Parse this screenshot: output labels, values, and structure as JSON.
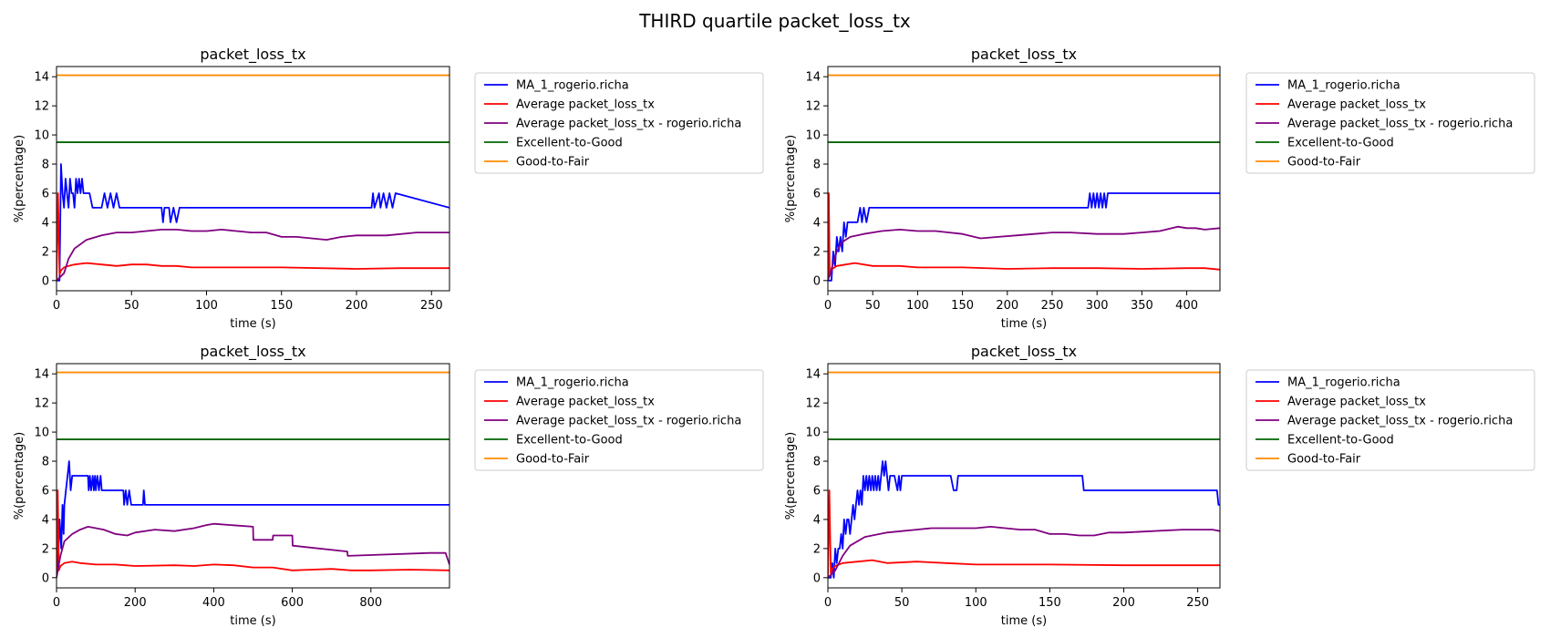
{
  "figure": {
    "title": "THIRD quartile packet_loss_tx"
  },
  "colors": {
    "ma": "#0000ff",
    "avg": "#ff0000",
    "avg_user": "#800080",
    "excellent_good": "#006400",
    "good_fair": "#ff8c00"
  },
  "legend_items": [
    "MA_1_rogerio.richa",
    "Average packet_loss_tx",
    "Average packet_loss_tx - rogerio.richa",
    "Excellent-to-Good",
    "Good-to-Fair"
  ],
  "chart_data": [
    {
      "type": "line",
      "title": "packet_loss_tx",
      "xlabel": "time (s)",
      "ylabel": "%(percentage)",
      "xlim": [
        0,
        262
      ],
      "ylim": [
        -0.7,
        14.7
      ],
      "xticks": [
        0,
        50,
        100,
        150,
        200,
        250
      ],
      "yticks": [
        0,
        2,
        4,
        6,
        8,
        10,
        12,
        14
      ],
      "grid": false,
      "legend": "outside-right",
      "thresholds": [
        {
          "name": "Excellent-to-Good",
          "value": 9.5,
          "color": "#006400"
        },
        {
          "name": "Good-to-Fair",
          "value": 14.1,
          "color": "#ff8c00"
        }
      ],
      "series": [
        {
          "name": "MA_1_rogerio.richa",
          "color": "#0000ff",
          "x": [
            0,
            2,
            3,
            4,
            5,
            6,
            7,
            8,
            9,
            10,
            11,
            12,
            13,
            14,
            15,
            16,
            17,
            18,
            20,
            22,
            24,
            30,
            32,
            34,
            36,
            38,
            40,
            42,
            60,
            70,
            71,
            72,
            75,
            76,
            78,
            80,
            82,
            210,
            211,
            212,
            215,
            216,
            218,
            220,
            222,
            224,
            226,
            262
          ],
          "y": [
            0,
            0,
            8,
            6,
            5,
            7,
            6,
            5,
            7,
            6,
            6,
            5,
            7,
            6,
            7,
            6,
            7,
            6,
            6,
            6,
            5,
            5,
            6,
            5,
            6,
            5,
            6,
            5,
            5,
            5,
            4,
            5,
            5,
            4,
            5,
            4,
            5,
            5,
            6,
            5,
            6,
            5,
            6,
            5,
            6,
            5,
            6,
            5
          ]
        },
        {
          "name": "Average packet_loss_tx",
          "color": "#ff0000",
          "x": [
            0,
            1,
            2,
            3,
            5,
            8,
            12,
            20,
            30,
            40,
            50,
            60,
            70,
            80,
            90,
            100,
            120,
            150,
            200,
            230,
            262
          ],
          "y": [
            0,
            6,
            0.4,
            0.7,
            0.9,
            1.0,
            1.1,
            1.2,
            1.1,
            1.0,
            1.1,
            1.1,
            1.0,
            1.0,
            0.9,
            0.9,
            0.9,
            0.9,
            0.8,
            0.85,
            0.85
          ]
        },
        {
          "name": "Average packet_loss_tx - rogerio.richa",
          "color": "#800080",
          "x": [
            0,
            5,
            8,
            12,
            20,
            30,
            40,
            50,
            60,
            70,
            80,
            90,
            100,
            110,
            120,
            130,
            140,
            150,
            160,
            170,
            180,
            190,
            200,
            220,
            240,
            262
          ],
          "y": [
            0,
            0.5,
            1.5,
            2.2,
            2.8,
            3.1,
            3.3,
            3.3,
            3.4,
            3.5,
            3.5,
            3.4,
            3.4,
            3.5,
            3.4,
            3.3,
            3.3,
            3.0,
            3.0,
            2.9,
            2.8,
            3.0,
            3.1,
            3.1,
            3.3,
            3.3
          ]
        }
      ]
    },
    {
      "type": "line",
      "title": "packet_loss_tx",
      "xlabel": "time (s)",
      "ylabel": "%(percentage)",
      "xlim": [
        0,
        437
      ],
      "ylim": [
        -0.7,
        14.7
      ],
      "xticks": [
        0,
        50,
        100,
        150,
        200,
        250,
        300,
        350,
        400
      ],
      "yticks": [
        0,
        2,
        4,
        6,
        8,
        10,
        12,
        14
      ],
      "grid": false,
      "legend": "outside-right",
      "thresholds": [
        {
          "name": "Excellent-to-Good",
          "value": 9.5,
          "color": "#006400"
        },
        {
          "name": "Good-to-Fair",
          "value": 14.1,
          "color": "#ff8c00"
        }
      ],
      "series": [
        {
          "name": "MA_1_rogerio.richa",
          "color": "#0000ff",
          "x": [
            0,
            4,
            6,
            8,
            10,
            12,
            14,
            16,
            18,
            20,
            22,
            25,
            28,
            30,
            33,
            36,
            38,
            40,
            43,
            46,
            50,
            290,
            292,
            294,
            296,
            298,
            300,
            302,
            304,
            306,
            308,
            310,
            312,
            437
          ],
          "y": [
            0,
            0,
            2,
            1,
            3,
            2,
            3,
            2,
            4,
            3,
            4,
            4,
            4,
            4,
            4,
            5,
            4,
            5,
            4,
            5,
            5,
            5,
            6,
            5,
            6,
            5,
            6,
            5,
            6,
            5,
            6,
            5,
            6,
            6
          ]
        },
        {
          "name": "Average packet_loss_tx",
          "color": "#ff0000",
          "x": [
            0,
            1,
            2,
            3,
            5,
            10,
            20,
            30,
            50,
            80,
            100,
            150,
            200,
            250,
            300,
            350,
            400,
            420,
            437
          ],
          "y": [
            0,
            6,
            0.3,
            0.6,
            0.8,
            1.0,
            1.1,
            1.2,
            1.0,
            1.0,
            0.9,
            0.9,
            0.8,
            0.85,
            0.85,
            0.8,
            0.85,
            0.85,
            0.75
          ]
        },
        {
          "name": "Average packet_loss_tx - rogerio.richa",
          "color": "#800080",
          "x": [
            0,
            5,
            10,
            15,
            25,
            40,
            60,
            80,
            100,
            120,
            150,
            170,
            190,
            210,
            230,
            250,
            270,
            300,
            330,
            350,
            370,
            390,
            400,
            410,
            420,
            437
          ],
          "y": [
            0,
            1.0,
            2.0,
            2.6,
            3.0,
            3.2,
            3.4,
            3.5,
            3.4,
            3.4,
            3.2,
            2.9,
            3.0,
            3.1,
            3.2,
            3.3,
            3.3,
            3.2,
            3.2,
            3.3,
            3.4,
            3.7,
            3.6,
            3.6,
            3.5,
            3.6
          ]
        }
      ]
    },
    {
      "type": "line",
      "title": "packet_loss_tx",
      "xlabel": "time (s)",
      "ylabel": "%(percentage)",
      "xlim": [
        0,
        1000
      ],
      "ylim": [
        -0.7,
        14.7
      ],
      "xticks": [
        0,
        200,
        400,
        600,
        800
      ],
      "yticks": [
        0,
        2,
        4,
        6,
        8,
        10,
        12,
        14
      ],
      "grid": false,
      "legend": "outside-right",
      "thresholds": [
        {
          "name": "Excellent-to-Good",
          "value": 9.5,
          "color": "#006400"
        },
        {
          "name": "Good-to-Fair",
          "value": 14.1,
          "color": "#ff8c00"
        }
      ],
      "series": [
        {
          "name": "MA_1_rogerio.richa",
          "color": "#0000ff",
          "x": [
            0,
            5,
            8,
            12,
            15,
            18,
            20,
            24,
            28,
            32,
            36,
            40,
            50,
            80,
            82,
            85,
            88,
            92,
            95,
            98,
            100,
            104,
            108,
            112,
            115,
            120,
            140,
            170,
            172,
            176,
            180,
            185,
            190,
            220,
            222,
            225,
            1000
          ],
          "y": [
            0,
            2,
            4,
            2,
            5,
            3,
            5,
            6,
            7,
            8,
            6,
            7,
            7,
            7,
            6,
            7,
            6,
            7,
            6,
            7,
            6,
            7,
            6,
            7,
            6,
            6,
            6,
            6,
            5,
            6,
            5,
            6,
            5,
            5,
            6,
            5,
            5
          ]
        },
        {
          "name": "Average packet_loss_tx",
          "color": "#ff0000",
          "x": [
            0,
            3,
            6,
            10,
            20,
            40,
            60,
            100,
            150,
            200,
            300,
            350,
            400,
            450,
            500,
            550,
            600,
            650,
            700,
            750,
            800,
            900,
            1000
          ],
          "y": [
            0,
            6,
            0.5,
            0.8,
            1.0,
            1.1,
            1.0,
            0.9,
            0.9,
            0.8,
            0.85,
            0.8,
            0.9,
            0.85,
            0.7,
            0.7,
            0.5,
            0.55,
            0.6,
            0.5,
            0.5,
            0.55,
            0.5
          ]
        },
        {
          "name": "Average packet_loss_tx - rogerio.richa",
          "color": "#800080",
          "x": [
            0,
            10,
            20,
            40,
            60,
            80,
            100,
            120,
            150,
            180,
            200,
            250,
            300,
            350,
            380,
            400,
            450,
            500,
            501,
            550,
            551,
            600,
            601,
            740,
            741,
            950,
            990,
            1000
          ],
          "y": [
            0,
            1.5,
            2.5,
            3.0,
            3.3,
            3.5,
            3.4,
            3.3,
            3.0,
            2.9,
            3.1,
            3.3,
            3.2,
            3.4,
            3.6,
            3.7,
            3.6,
            3.5,
            2.6,
            2.6,
            2.9,
            2.9,
            2.2,
            1.8,
            1.5,
            1.7,
            1.7,
            0.9
          ]
        }
      ]
    },
    {
      "type": "line",
      "title": "packet_loss_tx",
      "xlabel": "time (s)",
      "ylabel": "%(percentage)",
      "xlim": [
        0,
        265
      ],
      "ylim": [
        -0.7,
        14.7
      ],
      "xticks": [
        0,
        50,
        100,
        150,
        200,
        250
      ],
      "yticks": [
        0,
        2,
        4,
        6,
        8,
        10,
        12,
        14
      ],
      "grid": false,
      "legend": "outside-right",
      "thresholds": [
        {
          "name": "Excellent-to-Good",
          "value": 9.5,
          "color": "#006400"
        },
        {
          "name": "Good-to-Fair",
          "value": 14.1,
          "color": "#ff8c00"
        }
      ],
      "series": [
        {
          "name": "MA_1_rogerio.richa",
          "color": "#0000ff",
          "x": [
            0,
            2,
            3,
            4,
            5,
            6,
            7,
            8,
            9,
            10,
            11,
            12,
            13,
            14,
            15,
            16,
            17,
            18,
            19,
            20,
            21,
            22,
            23,
            24,
            25,
            26,
            27,
            28,
            29,
            30,
            31,
            32,
            33,
            34,
            35,
            36,
            37,
            38,
            39,
            40,
            41,
            42,
            43,
            45,
            47,
            48,
            49,
            50,
            52,
            55,
            58,
            60,
            83,
            85,
            87,
            88,
            172,
            173,
            263,
            264,
            265
          ],
          "y": [
            0,
            0,
            1,
            0,
            2,
            1,
            2,
            2,
            3,
            2,
            4,
            3,
            4,
            4,
            3,
            4,
            5,
            4,
            5,
            6,
            5,
            6,
            5,
            7,
            6,
            7,
            6,
            7,
            6,
            7,
            6,
            7,
            6,
            7,
            6,
            7,
            8,
            7,
            8,
            7,
            6,
            7,
            7,
            7,
            6,
            7,
            6,
            7,
            7,
            7,
            7,
            7,
            7,
            6,
            6,
            7,
            7,
            6,
            6,
            5,
            5
          ]
        },
        {
          "name": "Average packet_loss_tx",
          "color": "#ff0000",
          "x": [
            0,
            1,
            2,
            3,
            5,
            10,
            20,
            30,
            40,
            60,
            80,
            100,
            120,
            150,
            200,
            230,
            265
          ],
          "y": [
            0,
            6,
            0.3,
            0.6,
            0.8,
            1.0,
            1.1,
            1.2,
            1.0,
            1.1,
            1.0,
            0.9,
            0.9,
            0.9,
            0.85,
            0.85,
            0.85
          ]
        },
        {
          "name": "Average packet_loss_tx - rogerio.richa",
          "color": "#800080",
          "x": [
            0,
            5,
            10,
            15,
            25,
            40,
            50,
            60,
            70,
            80,
            90,
            100,
            110,
            120,
            130,
            140,
            150,
            160,
            170,
            180,
            190,
            200,
            220,
            240,
            260,
            265
          ],
          "y": [
            0,
            0.5,
            1.5,
            2.2,
            2.8,
            3.1,
            3.2,
            3.3,
            3.4,
            3.4,
            3.4,
            3.4,
            3.5,
            3.4,
            3.3,
            3.3,
            3.0,
            3.0,
            2.9,
            2.9,
            3.1,
            3.1,
            3.2,
            3.3,
            3.3,
            3.2
          ]
        }
      ]
    }
  ]
}
